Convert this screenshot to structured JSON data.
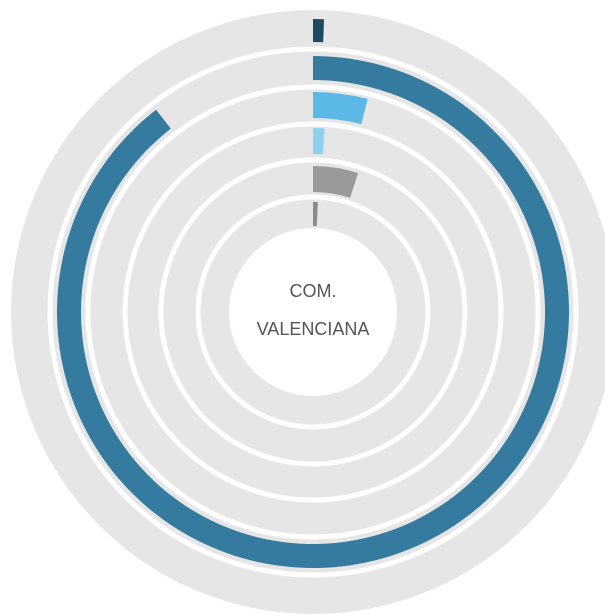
{
  "chart_data": {
    "type": "radial_bar",
    "title": "COM. VALENCIANA",
    "ylim": [
      0,
      100
    ],
    "series": [
      {
        "color": "#1d4a63",
        "values": [
          0.6
        ]
      },
      {
        "color": "#357b9f",
        "values": [
          89.5
        ]
      },
      {
        "color": "#5cb8e6",
        "values": [
          4
        ]
      },
      {
        "color": "#8ed2f2",
        "values": [
          1
        ]
      },
      {
        "color": "#9a9a9a",
        "values": [
          5
        ]
      },
      {
        "color": "#8a8a8a",
        "values": [
          0.7
        ]
      }
    ]
  }
}
